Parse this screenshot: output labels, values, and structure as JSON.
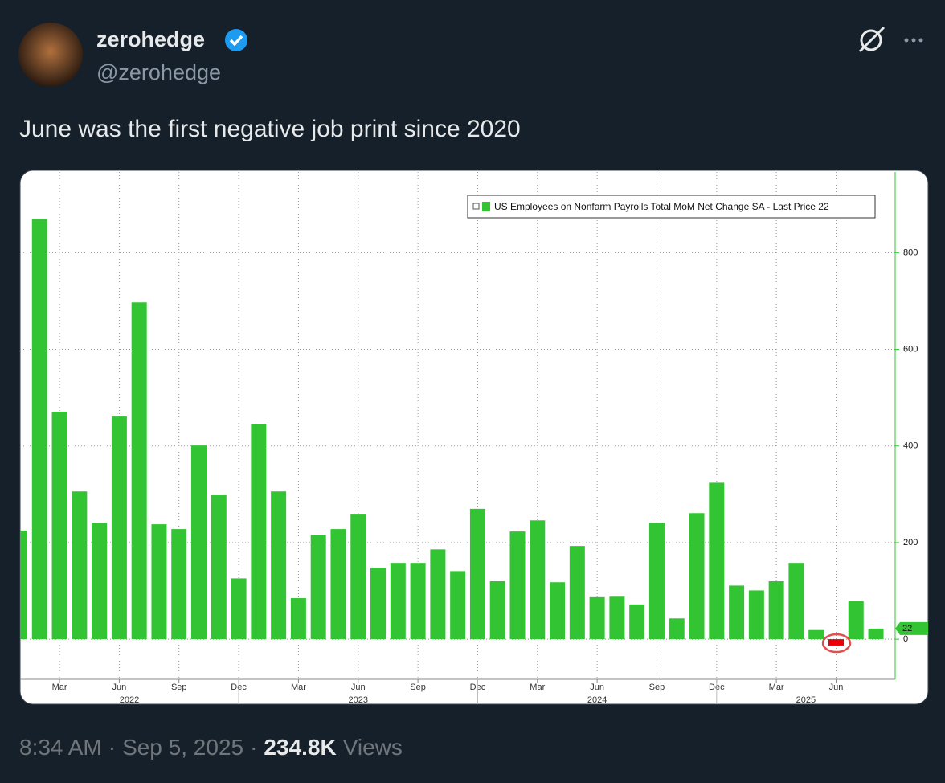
{
  "tweet": {
    "name": "zerohedge",
    "handle": "@zerohedge",
    "text": "June was the first negative job print since 2020",
    "time": "8:34 AM",
    "separator": "·",
    "date": "Sep 5, 2025",
    "views": "234.8K",
    "views_label": "Views"
  },
  "chart_data": {
    "type": "bar",
    "categories": [
      null,
      null,
      "Mar",
      null,
      null,
      "Jun",
      null,
      null,
      "Sep",
      null,
      null,
      "Dec",
      null,
      null,
      "Mar",
      null,
      null,
      "Jun",
      null,
      null,
      "Sep",
      null,
      null,
      "Dec",
      null,
      null,
      "Mar",
      null,
      null,
      "Jun",
      null,
      null,
      "Sep",
      null,
      null,
      "Dec",
      null,
      null,
      "Mar",
      null,
      null,
      "Jun",
      null,
      null
    ],
    "years": [
      "2022",
      "2023",
      "2024",
      "2025"
    ],
    "series": [
      {
        "name": "US Employees on Nonfarm Payrolls Total MoM Net Change SA - Last Price 22",
        "color": "#33c433",
        "values": [
          225,
          870,
          471,
          306,
          241,
          461,
          697,
          238,
          228,
          401,
          298,
          126,
          446,
          306,
          85,
          216,
          228,
          258,
          148,
          158,
          158,
          186,
          141,
          270,
          120,
          223,
          246,
          118,
          193,
          87,
          88,
          72,
          241,
          43,
          261,
          324,
          111,
          101,
          120,
          158,
          19,
          -13,
          79,
          22
        ]
      }
    ],
    "negative_color": "#e8000b",
    "ylim": [
      -83,
      967
    ],
    "yticks": [
      0,
      200,
      400,
      600,
      800
    ],
    "grid": true,
    "legend": "top-right"
  }
}
